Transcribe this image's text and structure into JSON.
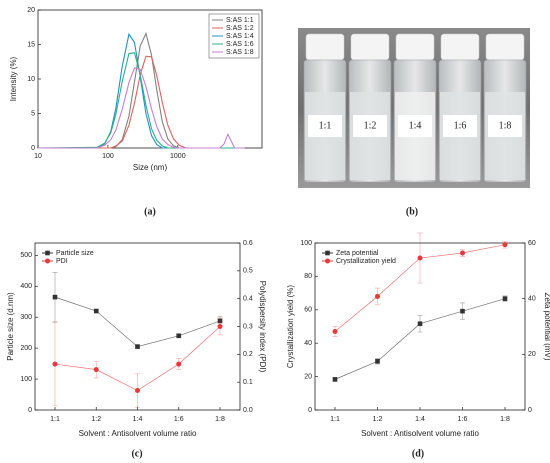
{
  "chart_data": [
    {
      "type": "line",
      "xlabel": "Size (nm)",
      "ylabel": "Intensity (%)",
      "xlog": true,
      "x": [
        10,
        70,
        90,
        110,
        130,
        160,
        200,
        240,
        290,
        350,
        420,
        500,
        600,
        720,
        870,
        1050,
        1300,
        4000,
        4600,
        5200,
        5800,
        6500,
        9000
      ],
      "xlim": [
        10,
        16000
      ],
      "xticks": [
        10,
        100,
        1000
      ],
      "ylim": [
        0,
        20
      ],
      "yticks": [
        0,
        5,
        10,
        15,
        20
      ],
      "legend": "upper right",
      "series": [
        {
          "name": "S:AS 1:1",
          "color": "#808080",
          "values": [
            0,
            0,
            0,
            0,
            0.2,
            1.2,
            4.6,
            9.6,
            14.8,
            16.6,
            13.5,
            8.4,
            3.8,
            1.3,
            0.3,
            0,
            0,
            0,
            0,
            0,
            0,
            0,
            0
          ]
        },
        {
          "name": "S:AS 1:2",
          "color": "#e0605c",
          "values": [
            0,
            0,
            0,
            0,
            0.3,
            1.0,
            3.3,
            6.5,
            10.6,
            13.3,
            13.2,
            10.5,
            6.6,
            3.3,
            1.3,
            0.4,
            0,
            0,
            0,
            0,
            0,
            0,
            0
          ]
        },
        {
          "name": "S:AS 1:4",
          "color": "#1f8fd0",
          "values": [
            0,
            0,
            0.6,
            2.4,
            5.8,
            11.8,
            16.5,
            15.3,
            10.3,
            5.0,
            1.8,
            0.5,
            0,
            0,
            0,
            0,
            0,
            0,
            0,
            0,
            0,
            0,
            0
          ]
        },
        {
          "name": "S:AS 1:6",
          "color": "#2cb083",
          "values": [
            0,
            0.1,
            0.7,
            2.2,
            4.9,
            9.6,
            13.7,
            13.8,
            10.6,
            6.2,
            2.8,
            1.1,
            0.3,
            0,
            0,
            0,
            0,
            0,
            0,
            0,
            0,
            0,
            0
          ]
        },
        {
          "name": "S:AS 1:8",
          "color": "#c57fd3",
          "values": [
            0,
            0,
            0.4,
            1.2,
            2.6,
            5.6,
            9.5,
            11.6,
            11.4,
            8.9,
            5.7,
            3.1,
            1.3,
            0.5,
            0.1,
            0,
            0,
            0,
            0.6,
            2.0,
            1.0,
            0,
            0
          ]
        }
      ]
    },
    {
      "type": "line",
      "xlabel": "Solvent : Antisolvent volume ratio",
      "ylabel": "Particle size (d.nm)",
      "y2label": "Polydispersity index (PDI)",
      "categories": [
        "1:1",
        "1:2",
        "1:4",
        "1:6",
        "1:8"
      ],
      "ylim": [
        0,
        540
      ],
      "yticks": [
        0,
        100,
        200,
        300,
        400,
        500
      ],
      "y2lim": [
        0,
        0.6
      ],
      "y2ticks": [
        {
          "value": 0,
          "label": "0.0"
        },
        0.1,
        0.2,
        0.3,
        0.4,
        0.5,
        0.6
      ],
      "legend": "upper left",
      "series": [
        {
          "name": "Particle size",
          "color": "#333333",
          "marker": "square",
          "values": [
            365,
            320,
            205,
            240,
            288
          ],
          "errors": [
            80,
            5,
            5,
            5,
            15
          ]
        },
        {
          "name": "PDI",
          "color": "#e8383a",
          "marker": "circle",
          "axis": "y2",
          "values": [
            0.165,
            0.145,
            0.07,
            0.165,
            0.3
          ],
          "errors": [
            0.15,
            0.03,
            0.06,
            0.02,
            0.03
          ]
        }
      ]
    },
    {
      "type": "line",
      "xlabel": "Solvent : Antisolvent volume ratio",
      "ylabel": "Crystallization yield (%)",
      "y2label": "Zeta potential (mV)",
      "categories": [
        "1:1",
        "1:2",
        "1:4",
        "1:6",
        "1:8"
      ],
      "ylim": [
        0,
        100
      ],
      "yticks": [
        0,
        20,
        40,
        60,
        80,
        100
      ],
      "y2lim": [
        0,
        60
      ],
      "y2ticks": [
        0,
        20,
        40,
        60
      ],
      "legend": "upper left",
      "series": [
        {
          "name": "Zeta potential",
          "color": "#333333",
          "marker": "square",
          "axis": "y2",
          "values": [
            11,
            17.5,
            31,
            35.5,
            40
          ],
          "errors": [
            0.5,
            1,
            3,
            3,
            1
          ]
        },
        {
          "name": "Crystallization yield",
          "color": "#e8383a",
          "marker": "circle",
          "values": [
            47,
            68,
            91,
            94,
            99
          ],
          "errors": [
            3,
            5,
            15,
            2,
            2
          ]
        }
      ]
    }
  ],
  "photo": {
    "labels": [
      "1:1",
      "1:2",
      "1:4",
      "1:6",
      "1:8"
    ]
  },
  "captions": [
    "(a)",
    "(b)",
    "(c)",
    "(d)"
  ]
}
